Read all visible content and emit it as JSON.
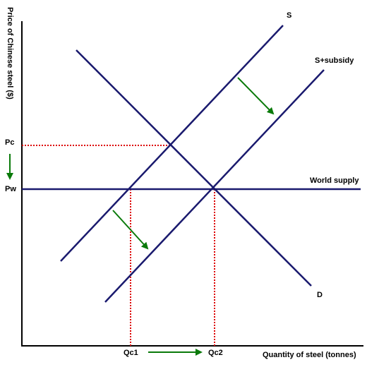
{
  "axes": {
    "y_label": "Price of Chinese steel ($)",
    "x_label": "Quantity of steel (tonnes)"
  },
  "curves": {
    "supply": "S",
    "supply_subsidy": "S+subsidy",
    "world_supply": "World supply",
    "demand": "D"
  },
  "prices": {
    "chinese": "Pc",
    "world": "Pw"
  },
  "quantities": {
    "before": "Qc1",
    "after": "Qc2"
  }
}
